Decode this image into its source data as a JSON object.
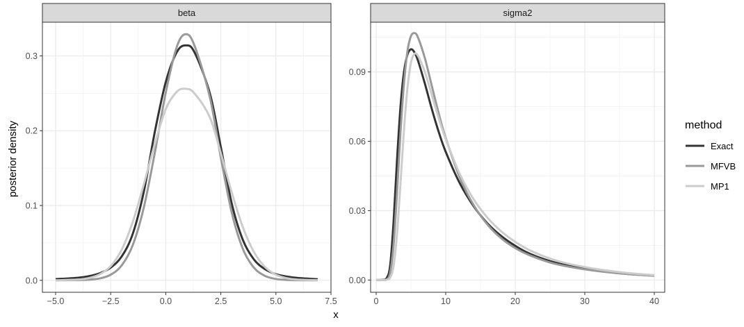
{
  "chart_data": {
    "type": "line",
    "xlabel": "x",
    "ylabel": "posterior density",
    "legend": {
      "title": "method",
      "position": "right",
      "entries": [
        {
          "name": "Exact",
          "color": "#333333"
        },
        {
          "name": "MFVB",
          "color": "#999999"
        },
        {
          "name": "MP1",
          "color": "#cccccc"
        }
      ]
    },
    "panels": [
      {
        "strip": "beta",
        "xlim": [
          -5.6,
          7.5
        ],
        "ylim": [
          -0.016,
          0.345
        ],
        "xticks": [
          -5.0,
          -2.5,
          0.0,
          2.5,
          5.0,
          7.5
        ],
        "xtick_labels": [
          "−5.0",
          "−2.5",
          "0.0",
          "2.5",
          "5.0",
          "7.5"
        ],
        "yticks": [
          0.0,
          0.1,
          0.2,
          0.3
        ],
        "ytick_labels": [
          "0.0",
          "0.1",
          "0.2",
          "0.3"
        ],
        "series": [
          {
            "name": "Exact",
            "points": [
              [
                -5.0,
                0.0016
              ],
              [
                -4.0,
                0.0034
              ],
              [
                -3.5,
                0.0055
              ],
              [
                -3.0,
                0.0094
              ],
              [
                -2.5,
                0.017
              ],
              [
                -2.0,
                0.032
              ],
              [
                -1.5,
                0.062
              ],
              [
                -1.0,
                0.118
              ],
              [
                -0.5,
                0.198
              ],
              [
                0.0,
                0.265
              ],
              [
                0.5,
                0.305
              ],
              [
                0.9,
                0.314
              ],
              [
                1.3,
                0.305
              ],
              [
                2.0,
                0.25
              ],
              [
                2.5,
                0.178
              ],
              [
                3.0,
                0.102
              ],
              [
                3.5,
                0.054
              ],
              [
                4.0,
                0.028
              ],
              [
                4.5,
                0.015
              ],
              [
                5.0,
                0.0082
              ],
              [
                5.5,
                0.005
              ],
              [
                6.0,
                0.0031
              ],
              [
                6.9,
                0.0015
              ]
            ]
          },
          {
            "name": "MFVB",
            "points": [
              [
                -5.0,
                0.0
              ],
              [
                -4.0,
                0.0002
              ],
              [
                -3.5,
                0.0008
              ],
              [
                -3.0,
                0.0025
              ],
              [
                -2.5,
                0.0075
              ],
              [
                -2.0,
                0.02
              ],
              [
                -1.5,
                0.047
              ],
              [
                -1.0,
                0.097
              ],
              [
                -0.5,
                0.17
              ],
              [
                0.0,
                0.251
              ],
              [
                0.5,
                0.312
              ],
              [
                0.9,
                0.329
              ],
              [
                1.3,
                0.314
              ],
              [
                2.0,
                0.245
              ],
              [
                2.5,
                0.164
              ],
              [
                3.0,
                0.09
              ],
              [
                3.5,
                0.042
              ],
              [
                4.0,
                0.017
              ],
              [
                4.5,
                0.006
              ],
              [
                5.0,
                0.0018
              ],
              [
                5.5,
                0.0005
              ],
              [
                6.0,
                0.0001
              ],
              [
                6.9,
                0.0
              ]
            ]
          },
          {
            "name": "MP1",
            "points": [
              [
                -5.0,
                0.0
              ],
              [
                -4.0,
                0.001
              ],
              [
                -3.5,
                0.003
              ],
              [
                -3.0,
                0.008
              ],
              [
                -2.5,
                0.019
              ],
              [
                -2.0,
                0.041
              ],
              [
                -1.5,
                0.078
              ],
              [
                -1.0,
                0.128
              ],
              [
                -0.5,
                0.182
              ],
              [
                0.0,
                0.229
              ],
              [
                0.5,
                0.252
              ],
              [
                0.9,
                0.256
              ],
              [
                1.3,
                0.25
              ],
              [
                2.0,
                0.218
              ],
              [
                2.5,
                0.17
              ],
              [
                3.0,
                0.117
              ],
              [
                3.5,
                0.071
              ],
              [
                4.0,
                0.038
              ],
              [
                4.5,
                0.018
              ],
              [
                5.0,
                0.0075
              ],
              [
                5.5,
                0.0028
              ],
              [
                6.0,
                0.0009
              ],
              [
                6.9,
                0.0001
              ]
            ]
          }
        ]
      },
      {
        "strip": "sigma2",
        "xlim": [
          -0.8,
          41.5
        ],
        "ylim": [
          -0.0053,
          0.1115
        ],
        "xticks": [
          0,
          10,
          20,
          30,
          40
        ],
        "xtick_labels": [
          "0",
          "10",
          "20",
          "30",
          "40"
        ],
        "yticks": [
          0.0,
          0.03,
          0.06,
          0.09
        ],
        "ytick_labels": [
          "0.00",
          "0.03",
          "0.06",
          "0.09"
        ],
        "series": [
          {
            "name": "Exact",
            "points": [
              [
                0,
                0
              ],
              [
                1.0,
                0.0001
              ],
              [
                1.5,
                0.0008
              ],
              [
                2.0,
                0.006
              ],
              [
                2.5,
                0.025
              ],
              [
                3.0,
                0.052
              ],
              [
                3.5,
                0.075
              ],
              [
                4.0,
                0.09
              ],
              [
                4.5,
                0.0975
              ],
              [
                5.0,
                0.0998
              ],
              [
                5.5,
                0.0985
              ],
              [
                6.0,
                0.095
              ],
              [
                7.0,
                0.085
              ],
              [
                8.0,
                0.074
              ],
              [
                9.0,
                0.064
              ],
              [
                10,
                0.0555
              ],
              [
                12,
                0.042
              ],
              [
                14,
                0.032
              ],
              [
                16,
                0.0245
              ],
              [
                18,
                0.019
              ],
              [
                20,
                0.0148
              ],
              [
                22,
                0.0115
              ],
              [
                25,
                0.0082
              ],
              [
                28,
                0.006
              ],
              [
                32,
                0.004
              ],
              [
                36,
                0.0027
              ],
              [
                40,
                0.0019
              ]
            ]
          },
          {
            "name": "MFVB",
            "points": [
              [
                0,
                0
              ],
              [
                1.0,
                0.0
              ],
              [
                1.5,
                0.0002
              ],
              [
                2.0,
                0.003
              ],
              [
                2.5,
                0.015
              ],
              [
                3.0,
                0.038
              ],
              [
                3.5,
                0.064
              ],
              [
                4.0,
                0.085
              ],
              [
                4.5,
                0.099
              ],
              [
                5.0,
                0.1055
              ],
              [
                5.5,
                0.1068
              ],
              [
                6.0,
                0.105
              ],
              [
                7.0,
                0.096
              ],
              [
                8.0,
                0.084
              ],
              [
                9.0,
                0.072
              ],
              [
                10,
                0.0615
              ],
              [
                12,
                0.0445
              ],
              [
                14,
                0.0325
              ],
              [
                16,
                0.024
              ],
              [
                18,
                0.018
              ],
              [
                20,
                0.0138
              ],
              [
                22,
                0.0108
              ],
              [
                25,
                0.0076
              ],
              [
                28,
                0.0056
              ],
              [
                32,
                0.0038
              ],
              [
                36,
                0.0026
              ],
              [
                40,
                0.0018
              ]
            ]
          },
          {
            "name": "MP1",
            "points": [
              [
                0,
                0
              ],
              [
                1.0,
                0.0
              ],
              [
                1.5,
                0.0001
              ],
              [
                2.0,
                0.001
              ],
              [
                2.5,
                0.006
              ],
              [
                3.0,
                0.02
              ],
              [
                3.5,
                0.042
              ],
              [
                4.0,
                0.065
              ],
              [
                4.5,
                0.083
              ],
              [
                5.0,
                0.094
              ],
              [
                5.5,
                0.0978
              ],
              [
                6.0,
                0.097
              ],
              [
                7.0,
                0.09
              ],
              [
                8.0,
                0.08
              ],
              [
                9.0,
                0.07
              ],
              [
                10,
                0.061
              ],
              [
                12,
                0.046
              ],
              [
                14,
                0.035
              ],
              [
                16,
                0.027
              ],
              [
                18,
                0.021
              ],
              [
                20,
                0.0165
              ],
              [
                22,
                0.013
              ],
              [
                25,
                0.0093
              ],
              [
                28,
                0.0068
              ],
              [
                32,
                0.0046
              ],
              [
                36,
                0.0031
              ],
              [
                40,
                0.0021
              ]
            ]
          }
        ]
      }
    ]
  }
}
